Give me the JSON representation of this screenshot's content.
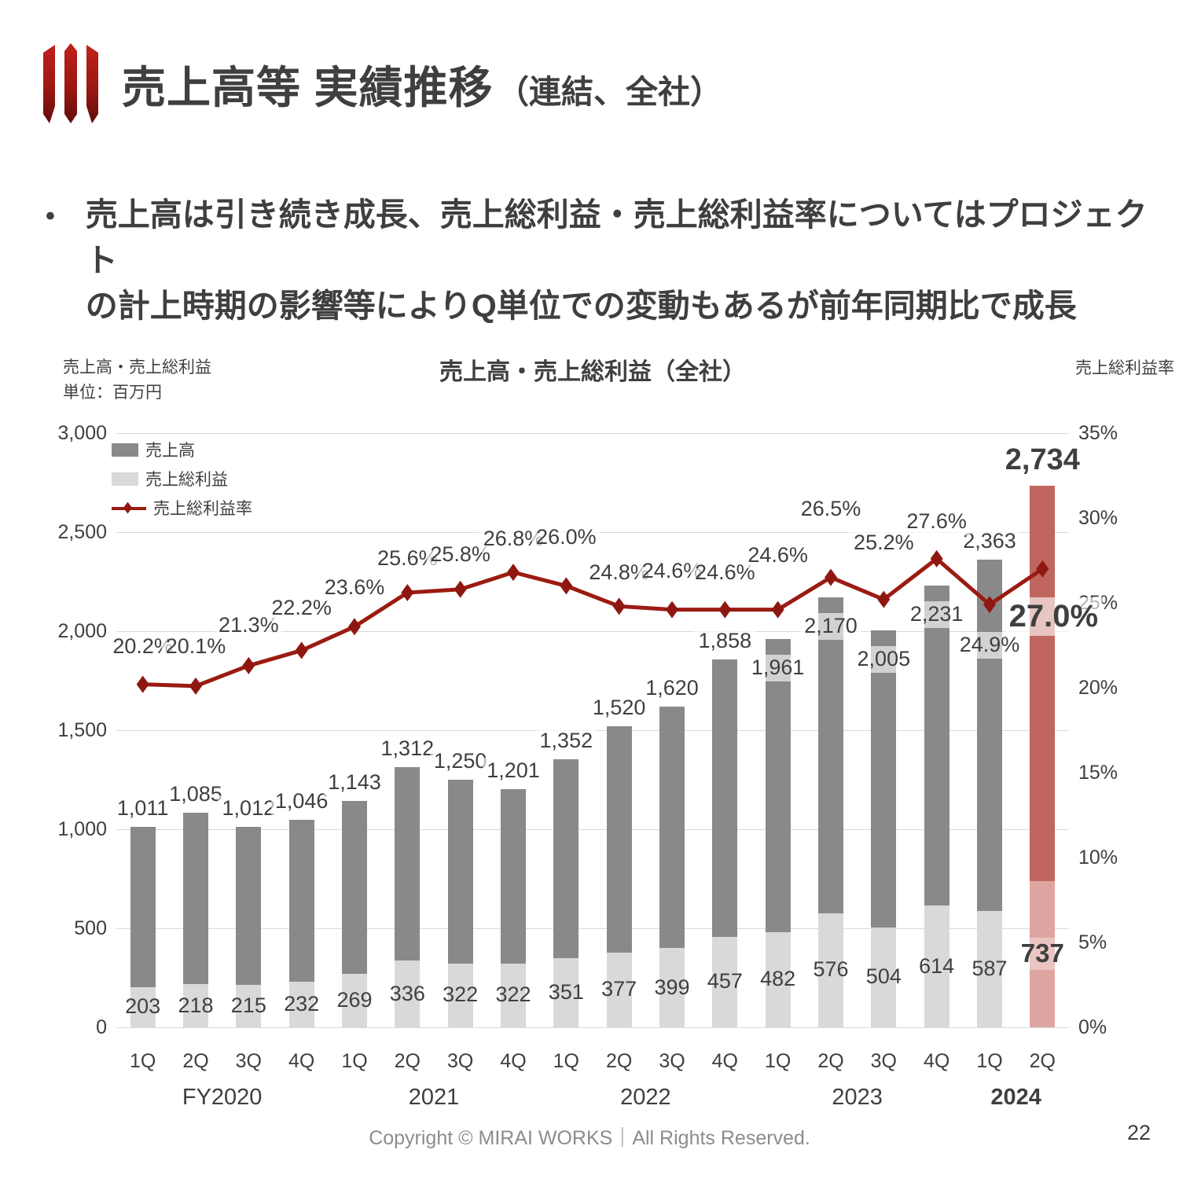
{
  "page": {
    "footer": "Copyright © MIRAI WORKS｜All Rights Reserved.",
    "page_number": "22"
  },
  "header": {
    "title_main": "売上高等 実績推移",
    "title_sub": "（連結、全社）"
  },
  "bullet": {
    "marker": "•",
    "text": "売上高は引き続き成長、売上総利益・売上総利益率についてはプロジェクト\nの計上時期の影響等によりQ単位での変動もあるが前年同期比で成長"
  },
  "chart": {
    "title": "売上高・売上総利益（全社）",
    "left_axis_title_line1": "売上高・売上総利益",
    "left_axis_title_line2": "単位：百万円",
    "right_axis_title": "売上総利益率",
    "legend": [
      {
        "label": "売上高",
        "type": "rect",
        "color": "#898989"
      },
      {
        "label": "売上総利益",
        "type": "rect",
        "color": "#d9d9d9"
      },
      {
        "label": "売上総利益率",
        "type": "line",
        "color": "#9b1b12"
      }
    ]
  },
  "chart_data": {
    "type": "bar+line",
    "title": "売上高・売上総利益（全社）",
    "categories": [
      "1Q",
      "2Q",
      "3Q",
      "4Q",
      "1Q",
      "2Q",
      "3Q",
      "4Q",
      "1Q",
      "2Q",
      "3Q",
      "4Q",
      "1Q",
      "2Q",
      "3Q",
      "4Q",
      "1Q",
      "2Q"
    ],
    "year_groups": [
      {
        "label": "FY2020",
        "center_slot": 1.5,
        "bold": false
      },
      {
        "label": "2021",
        "center_slot": 5.5,
        "bold": false
      },
      {
        "label": "2022",
        "center_slot": 9.5,
        "bold": false
      },
      {
        "label": "2023",
        "center_slot": 13.5,
        "bold": false
      },
      {
        "label": "2024",
        "center_slot": 16.5,
        "bold": true
      }
    ],
    "series": [
      {
        "name": "売上高",
        "type": "bar",
        "axis": "left",
        "values": [
          1011,
          1085,
          1012,
          1046,
          1143,
          1312,
          1250,
          1201,
          1352,
          1520,
          1620,
          1858,
          1961,
          2170,
          2005,
          2231,
          2363,
          2734
        ]
      },
      {
        "name": "売上総利益",
        "type": "bar",
        "axis": "left",
        "values": [
          203,
          218,
          215,
          232,
          269,
          336,
          322,
          322,
          351,
          377,
          399,
          457,
          482,
          576,
          504,
          614,
          587,
          737
        ]
      },
      {
        "name": "売上総利益率",
        "type": "line",
        "axis": "right",
        "values_pct": [
          20.2,
          20.1,
          21.3,
          22.2,
          23.6,
          25.6,
          25.8,
          26.8,
          26.0,
          24.8,
          24.6,
          24.6,
          24.6,
          26.5,
          25.2,
          27.6,
          24.9,
          27.0
        ]
      }
    ],
    "left_axis": {
      "min": 0,
      "max": 3000,
      "step": 500,
      "ticks": [
        "0",
        "500",
        "1,000",
        "1,500",
        "2,000",
        "2,500",
        "3,000"
      ]
    },
    "right_axis": {
      "min_pct": 0,
      "max_pct": 35,
      "step_pct": 5,
      "ticks": [
        "0%",
        "5%",
        "10%",
        "15%",
        "20%",
        "25%",
        "30%",
        "35%"
      ]
    },
    "highlight_index": 17,
    "colors": {
      "revenue_bar": "#898989",
      "gross_bar": "#d9d9d9",
      "revenue_bar_highlight": "#bf665e",
      "gross_bar_highlight": "#dfa6a1",
      "line": "#9b1b12",
      "marker": "#8e170f",
      "gridline": "#d9d9d9",
      "ink": "#3f3f3f"
    },
    "layout": {
      "grid": "horizontal",
      "legend_position": "top-left",
      "pct_label_dy": [
        -48,
        -50,
        -51,
        -53,
        -49,
        -43,
        -44,
        -42,
        -61,
        -42,
        -49,
        -47,
        -69,
        -87,
        -72,
        -47,
        52,
        64
      ],
      "pct_label_dx": [
        0,
        0,
        0,
        0,
        0,
        0,
        0,
        0,
        0,
        0,
        0,
        0,
        0,
        0,
        0,
        0,
        0,
        14
      ],
      "value_inside_indices": [
        12,
        13,
        14,
        15
      ]
    }
  }
}
